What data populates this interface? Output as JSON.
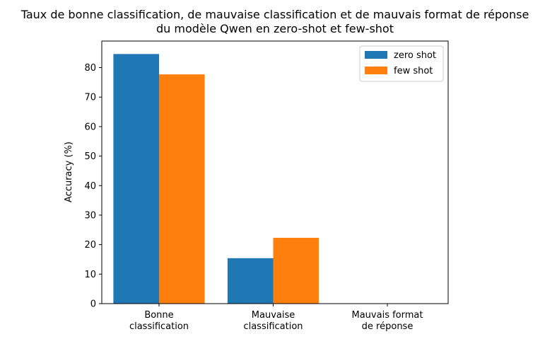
{
  "chart_data": {
    "type": "bar",
    "title": [
      "Taux de bonne classification, de mauvaise classification et de mauvais format de réponse",
      "du modèle Qwen en zero-shot et few-shot"
    ],
    "xlabel": "",
    "ylabel": "Accuracy (%)",
    "categories": [
      [
        "Bonne",
        "classification"
      ],
      [
        "Mauvaise",
        "classification"
      ],
      [
        "Mauvais format",
        "de réponse"
      ]
    ],
    "series": [
      {
        "name": "zero shot",
        "color": "#1f77b4",
        "values": [
          84.6,
          15.4,
          0
        ]
      },
      {
        "name": "few shot",
        "color": "#ff7f0e",
        "values": [
          77.7,
          22.3,
          0
        ]
      }
    ],
    "ylim": [
      0,
      89
    ],
    "yticks": [
      0,
      10,
      20,
      30,
      40,
      50,
      60,
      70,
      80
    ],
    "grid": false,
    "legend": "top-right"
  }
}
